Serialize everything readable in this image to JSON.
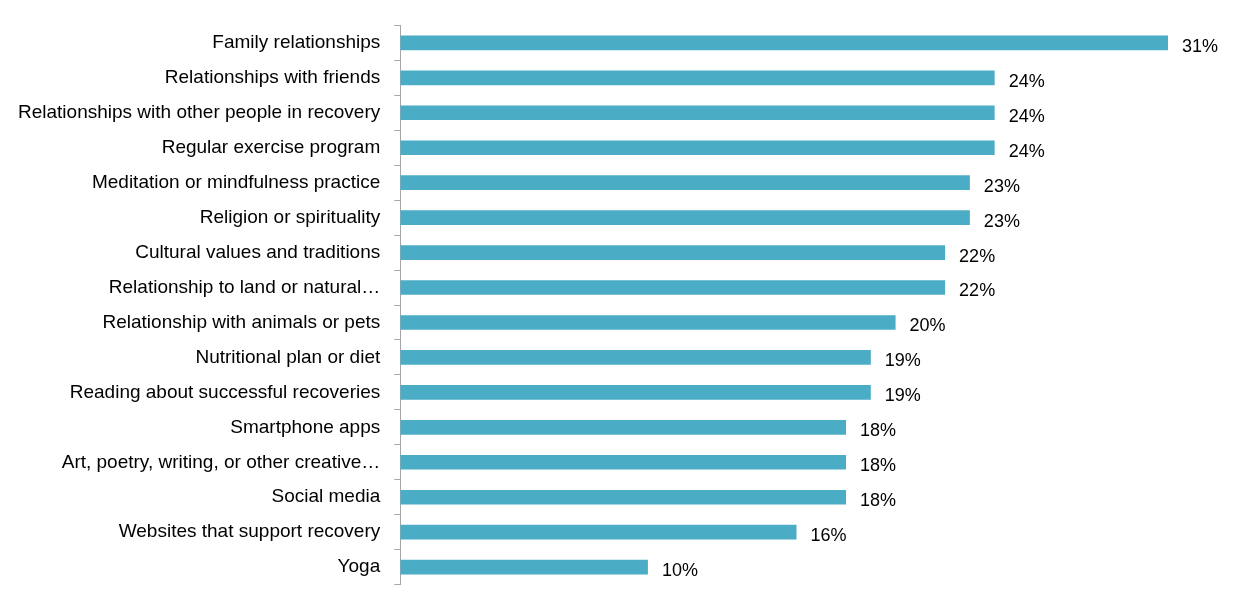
{
  "chart_data": {
    "type": "bar",
    "orientation": "horizontal",
    "legend": false,
    "value_labels": [
      "31%",
      "24%",
      "24%",
      "24%",
      "23%",
      "23%",
      "22%",
      "22%",
      "20%",
      "19%",
      "19%",
      "18%",
      "18%",
      "18%",
      "16%",
      "10%"
    ],
    "categories": [
      "Family relationships",
      "Relationships with friends",
      "Relationships with other people in recovery",
      "Regular exercise program",
      "Meditation or mindfulness practice",
      "Religion or spirituality",
      "Cultural values and traditions",
      "Relationship to land or natural…",
      "Relationship with animals or pets",
      "Nutritional plan or diet",
      "Reading about successful recoveries",
      "Smartphone apps",
      "Art, poetry, writing, or other creative…",
      "Social media",
      "Websites that support recovery",
      "Yoga"
    ],
    "values": [
      31,
      24,
      24,
      24,
      23,
      23,
      22,
      22,
      20,
      19,
      19,
      18,
      18,
      18,
      16,
      10
    ],
    "color": "#4bacc6"
  }
}
